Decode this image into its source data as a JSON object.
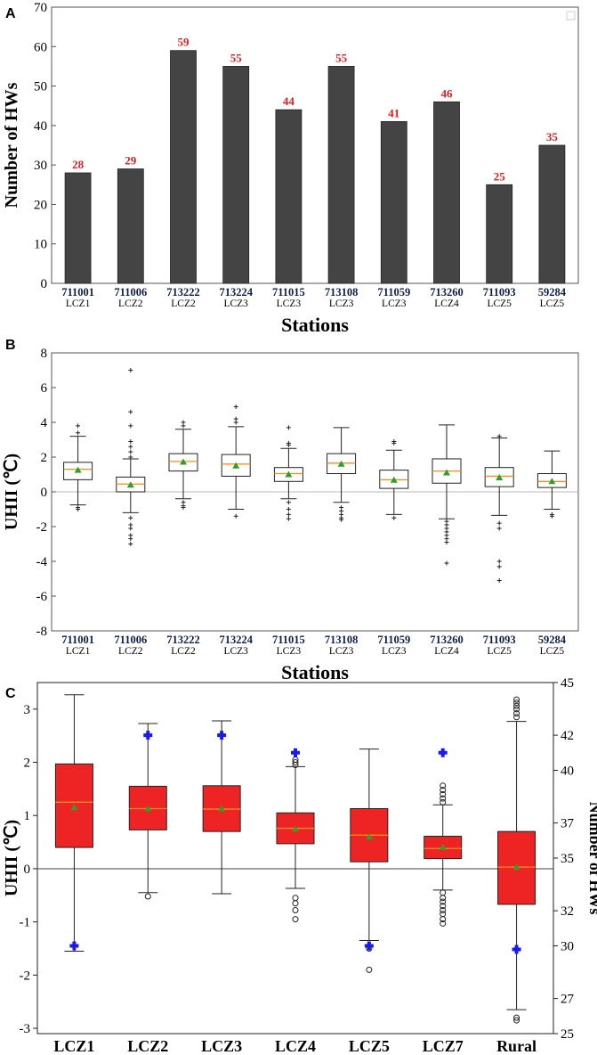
{
  "chart_data": [
    {
      "panel": "A",
      "type": "bar",
      "title": "",
      "xlabel": "Stations",
      "ylabel": "Number of HWs",
      "ylim": [
        0,
        70
      ],
      "yticks": [
        "0",
        "10",
        "20",
        "30",
        "40",
        "50",
        "60",
        "70"
      ],
      "categories": [
        "711001",
        "711006",
        "713222",
        "713224",
        "711015",
        "713108",
        "711059",
        "713260",
        "711093",
        "59284"
      ],
      "lcz": [
        "LCZ1",
        "LCZ2",
        "LCZ2",
        "LCZ3",
        "LCZ3",
        "LCZ3",
        "LCZ3",
        "LCZ4",
        "LCZ5",
        "LCZ5"
      ],
      "values": [
        28,
        29,
        59,
        55,
        44,
        55,
        41,
        46,
        25,
        35
      ],
      "value_labels": [
        "28",
        "29",
        "59",
        "55",
        "44",
        "55",
        "41",
        "46",
        "25",
        "35"
      ],
      "bar_color": "#444444",
      "label_color": "#e41a1c"
    },
    {
      "panel": "B",
      "type": "box",
      "xlabel": "Stations",
      "ylabel": "UHII (℃)",
      "ylim": [
        -8,
        8
      ],
      "yticks": [
        "-8",
        "-6",
        "-4",
        "-2",
        "0",
        "2",
        "4",
        "6",
        "8"
      ],
      "categories": [
        "711001",
        "711006",
        "713222",
        "713224",
        "711015",
        "713108",
        "711059",
        "713260",
        "711093",
        "59284"
      ],
      "lcz": [
        "LCZ1",
        "LCZ2",
        "LCZ2",
        "LCZ3",
        "LCZ3",
        "LCZ3",
        "LCZ3",
        "LCZ4",
        "LCZ5",
        "LCZ5"
      ],
      "boxes": [
        {
          "q1": 0.7,
          "median": 1.3,
          "q3": 1.7,
          "mean": 1.25,
          "whislo": -0.75,
          "whishi": 3.2,
          "fliers": [
            -0.9,
            -1.0,
            3.4,
            3.8
          ]
        },
        {
          "q1": 0.0,
          "median": 0.45,
          "q3": 0.85,
          "mean": 0.4,
          "whislo": -1.2,
          "whishi": 1.9,
          "fliers": [
            -1.5,
            -1.9,
            -2.1,
            -2.5,
            -2.7,
            -3.0,
            2.0,
            2.3,
            2.6,
            2.9,
            3.8,
            4.6,
            7.0
          ]
        },
        {
          "q1": 1.2,
          "median": 1.75,
          "q3": 2.2,
          "mean": 1.72,
          "whislo": -0.4,
          "whishi": 3.6,
          "fliers": [
            -0.6,
            -0.8,
            -0.9,
            3.8,
            4.0
          ]
        },
        {
          "q1": 0.9,
          "median": 1.6,
          "q3": 2.15,
          "mean": 1.5,
          "whislo": -1.0,
          "whishi": 3.75,
          "fliers": [
            -1.4,
            4.0,
            4.2,
            4.9
          ]
        },
        {
          "q1": 0.6,
          "median": 1.05,
          "q3": 1.4,
          "mean": 1.0,
          "whislo": -0.4,
          "whishi": 2.5,
          "fliers": [
            -0.6,
            -1.0,
            -1.3,
            -1.55,
            2.7,
            2.8,
            3.7
          ]
        },
        {
          "q1": 1.05,
          "median": 1.65,
          "q3": 2.2,
          "mean": 1.6,
          "whislo": -0.6,
          "whishi": 3.7,
          "fliers": [
            -0.9,
            -1.1,
            -1.3,
            -1.5,
            -1.6
          ]
        },
        {
          "q1": 0.2,
          "median": 0.7,
          "q3": 1.25,
          "mean": 0.68,
          "whislo": -1.3,
          "whishi": 2.4,
          "fliers": [
            -1.5,
            2.8,
            2.9
          ]
        },
        {
          "q1": 0.5,
          "median": 1.2,
          "q3": 1.9,
          "mean": 1.1,
          "whislo": -1.55,
          "whishi": 3.85,
          "fliers": [
            -1.7,
            -1.9,
            -2.1,
            -2.3,
            -2.5,
            -2.7,
            -2.9,
            -4.1
          ]
        },
        {
          "q1": 0.3,
          "median": 0.9,
          "q3": 1.4,
          "mean": 0.82,
          "whislo": -1.35,
          "whishi": 3.1,
          "fliers": [
            -1.8,
            -2.1,
            -4.0,
            -4.3,
            -5.1,
            3.2
          ]
        },
        {
          "q1": 0.25,
          "median": 0.6,
          "q3": 1.05,
          "mean": 0.6,
          "whislo": -1.0,
          "whishi": 2.35,
          "fliers": [
            -1.3,
            -1.4
          ]
        }
      ],
      "median_color": "#ff8c1a",
      "mean_color": "#2ca02c"
    },
    {
      "panel": "C",
      "type": "box",
      "xlabel": "",
      "ylabel": "UHII (℃)",
      "y2label": "Number of HWs",
      "ylim": [
        -3.1,
        3.5
      ],
      "yticks": [
        "-3",
        "-2",
        "-1",
        "0",
        "1",
        "2",
        "3"
      ],
      "y2lim": [
        25,
        45
      ],
      "y2ticks": [
        "25",
        "27",
        "30",
        "32",
        "35",
        "37",
        "40",
        "42",
        "45"
      ],
      "categories": [
        "LCZ1",
        "LCZ2",
        "LCZ3",
        "LCZ4",
        "LCZ5",
        "LCZ7",
        "Rural"
      ],
      "boxes": [
        {
          "q1": 0.4,
          "median": 1.25,
          "q3": 1.97,
          "mean": 1.15,
          "whislo": -1.55,
          "whishi": 3.27,
          "fliers": []
        },
        {
          "q1": 0.73,
          "median": 1.13,
          "q3": 1.55,
          "mean": 1.13,
          "whislo": -0.45,
          "whishi": 2.73,
          "fliers": [
            -0.52
          ]
        },
        {
          "q1": 0.7,
          "median": 1.12,
          "q3": 1.56,
          "mean": 1.13,
          "whislo": -0.47,
          "whishi": 2.78,
          "fliers": []
        },
        {
          "q1": 0.47,
          "median": 0.76,
          "q3": 1.05,
          "mean": 0.75,
          "whislo": -0.37,
          "whishi": 1.92,
          "fliers": [
            -0.55,
            -0.65,
            -0.78,
            -0.95,
            1.95,
            2.0,
            2.05
          ]
        },
        {
          "q1": 0.13,
          "median": 0.63,
          "q3": 1.13,
          "mean": 0.6,
          "whislo": -1.35,
          "whishi": 2.25,
          "fliers": [
            -1.5,
            -1.9
          ]
        },
        {
          "q1": 0.19,
          "median": 0.38,
          "q3": 0.61,
          "mean": 0.4,
          "whislo": -0.4,
          "whishi": 1.2,
          "fliers": [
            -0.45,
            -0.55,
            -0.62,
            -0.7,
            -0.78,
            -0.85,
            -0.95,
            -1.03,
            1.25,
            1.32,
            1.4,
            1.48,
            1.56
          ]
        },
        {
          "q1": -0.67,
          "median": 0.03,
          "q3": 0.7,
          "mean": 0.03,
          "whislo": -2.65,
          "whishi": 2.77,
          "fliers": [
            -2.8,
            -2.85,
            2.85,
            2.92,
            3.0,
            3.06,
            3.12,
            3.18
          ]
        }
      ],
      "hws_points": [
        30,
        42,
        42,
        41,
        30,
        41,
        29.8
      ],
      "box_color": "#ee2424",
      "marker_color": "#1a1aee",
      "median_color": "#ff8c1a",
      "mean_color": "#2ca02c"
    }
  ],
  "panels": {
    "a_letter": "A",
    "b_letter": "B",
    "c_letter": "C"
  }
}
